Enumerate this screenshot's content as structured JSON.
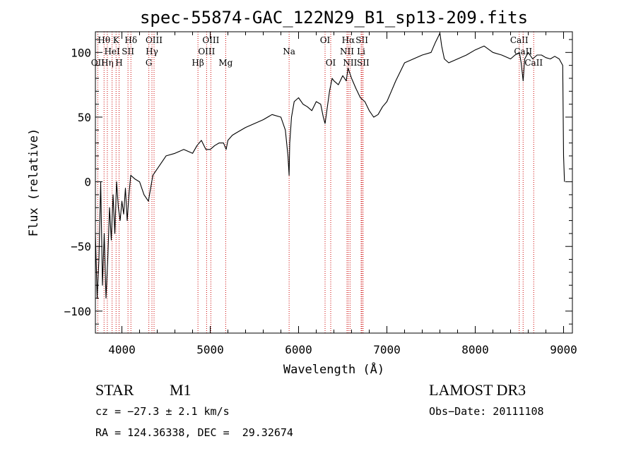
{
  "chart_data": {
    "type": "line",
    "title": "spec-55874-GAC_122N29_B1_sp13-209.fits",
    "xlabel": "Wavelength (Å)",
    "ylabel": "Flux (relative)",
    "xlim": [
      3700,
      9100
    ],
    "ylim": [
      -117,
      116
    ],
    "xticks": [
      4000,
      5000,
      6000,
      7000,
      8000,
      9000
    ],
    "yticks": [
      -100,
      -50,
      0,
      50,
      100
    ],
    "grid": false,
    "series": [
      {
        "color": "#000000",
        "x": [
          3700,
          3720,
          3740,
          3760,
          3780,
          3800,
          3820,
          3840,
          3860,
          3880,
          3900,
          3920,
          3940,
          3960,
          3980,
          4000,
          4020,
          4040,
          4060,
          4080,
          4100,
          4150,
          4200,
          4250,
          4300,
          4350,
          4400,
          4500,
          4600,
          4700,
          4800,
          4850,
          4900,
          4950,
          5000,
          5050,
          5100,
          5150,
          5180,
          5200,
          5250,
          5300,
          5400,
          5500,
          5600,
          5700,
          5800,
          5850,
          5880,
          5893,
          5900,
          5920,
          5950,
          6000,
          6050,
          6100,
          6150,
          6200,
          6250,
          6280,
          6300,
          6330,
          6350,
          6380,
          6400,
          6450,
          6500,
          6540,
          6560,
          6600,
          6650,
          6700,
          6750,
          6800,
          6850,
          6900,
          6950,
          7000,
          7050,
          7100,
          7150,
          7200,
          7300,
          7400,
          7500,
          7550,
          7580,
          7600,
          7620,
          7650,
          7700,
          7800,
          7900,
          8000,
          8100,
          8200,
          8300,
          8400,
          8450,
          8500,
          8520,
          8542,
          8560,
          8600,
          8650,
          8700,
          8750,
          8800,
          8850,
          8900,
          8950,
          8990,
          9000,
          9010
        ],
        "y": [
          -40,
          -90,
          -60,
          0,
          -80,
          -40,
          -90,
          -60,
          -20,
          -45,
          -10,
          -40,
          0,
          -20,
          -30,
          -15,
          -25,
          -5,
          -30,
          -10,
          5,
          2,
          0,
          -10,
          -15,
          5,
          10,
          20,
          22,
          25,
          22,
          28,
          32,
          25,
          25,
          28,
          30,
          30,
          25,
          32,
          36,
          38,
          42,
          45,
          48,
          52,
          50,
          40,
          20,
          5,
          30,
          50,
          62,
          65,
          60,
          58,
          55,
          62,
          60,
          50,
          45,
          60,
          70,
          80,
          78,
          75,
          82,
          78,
          88,
          80,
          72,
          65,
          62,
          55,
          50,
          52,
          58,
          62,
          70,
          78,
          85,
          92,
          95,
          98,
          100,
          108,
          112,
          115,
          105,
          95,
          92,
          95,
          98,
          102,
          105,
          100,
          98,
          95,
          98,
          100,
          92,
          78,
          95,
          100,
          95,
          98,
          98,
          96,
          95,
          97,
          95,
          90,
          20,
          0
        ]
      }
    ],
    "lines": [
      {
        "name": "Hθ",
        "x": 3798,
        "row": 0
      },
      {
        "name": "OII",
        "x": 3727,
        "row": 2
      },
      {
        "name": "Hη",
        "x": 3835,
        "row": 2
      },
      {
        "name": "HeI",
        "x": 3889,
        "row": 1
      },
      {
        "name": "K",
        "x": 3934,
        "row": 0
      },
      {
        "name": "H",
        "x": 3968,
        "row": 2
      },
      {
        "name": "SII",
        "x": 4069,
        "row": 1
      },
      {
        "name": "Hδ",
        "x": 4102,
        "row": 0
      },
      {
        "name": "OIII",
        "x": 4364,
        "row": 0
      },
      {
        "name": "Hγ",
        "x": 4340,
        "row": 1
      },
      {
        "name": "G",
        "x": 4305,
        "row": 2
      },
      {
        "name": "Hβ",
        "x": 4861,
        "row": 2
      },
      {
        "name": "OIII",
        "x": 4959,
        "row": 1
      },
      {
        "name": "OIII",
        "x": 5007,
        "row": 0
      },
      {
        "name": "Mg",
        "x": 5175,
        "row": 2
      },
      {
        "name": "Na",
        "x": 5893,
        "row": 1
      },
      {
        "name": "OI",
        "x": 6300,
        "row": 0
      },
      {
        "name": "OI",
        "x": 6364,
        "row": 2
      },
      {
        "name": "NII",
        "x": 6548,
        "row": 1
      },
      {
        "name": "Hα",
        "x": 6563,
        "row": 0
      },
      {
        "name": "NII",
        "x": 6583,
        "row": 2
      },
      {
        "name": "Li",
        "x": 6708,
        "row": 1
      },
      {
        "name": "SII",
        "x": 6717,
        "row": 0
      },
      {
        "name": "SII",
        "x": 6731,
        "row": 2
      },
      {
        "name": "CaII",
        "x": 8498,
        "row": 0
      },
      {
        "name": "CaII",
        "x": 8542,
        "row": 1
      },
      {
        "name": "CaII",
        "x": 8662,
        "row": 2
      }
    ],
    "line_color": "#cc0000"
  },
  "info": {
    "class": "STAR",
    "subclass": "M1",
    "survey": "LAMOST DR3",
    "cz": "cz = −27.3 ± 2.1 km/s",
    "obs_date": "Obs−Date: 20111108",
    "coords": "RA = 124.36338, DEC =  29.32674"
  }
}
